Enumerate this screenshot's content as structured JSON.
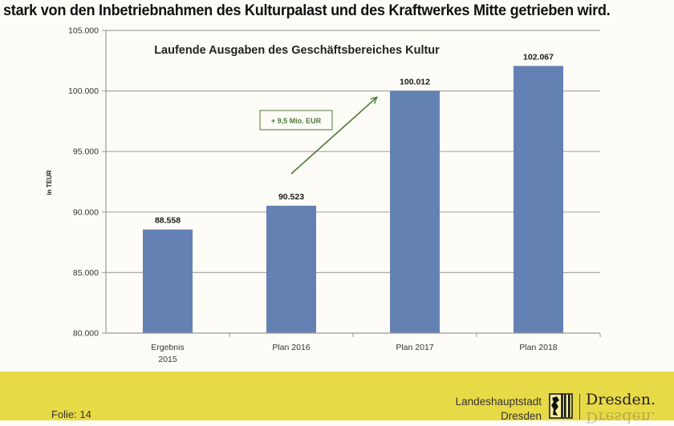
{
  "slide": {
    "headline": "stark von den Inbetriebnahmen des Kulturpalast und des Kraftwerkes Mitte getrieben wird.",
    "footer": {
      "slide_number": "Folie: 14",
      "org_line1": "Landeshauptstadt",
      "org_line2": "Dresden",
      "logo_text": "Dresden.",
      "background_color": "#e8da47"
    }
  },
  "chart_data": {
    "type": "bar",
    "title": "Laufende Ausgaben des Geschäftsbereiches Kultur",
    "xlabel": "",
    "ylabel": "in TEUR",
    "categories": [
      "Ergebnis 2015",
      "Plan 2016",
      "Plan 2017",
      "Plan 2018"
    ],
    "category_lines": [
      [
        "Ergebnis",
        "2015"
      ],
      [
        "Plan 2016"
      ],
      [
        "Plan 2017"
      ],
      [
        "Plan 2018"
      ]
    ],
    "values": [
      88558,
      90523,
      100012,
      102067
    ],
    "data_labels": [
      "88.558",
      "90.523",
      "100.012",
      "102.067"
    ],
    "ylim": [
      80000,
      105000
    ],
    "yticks": [
      80000,
      85000,
      90000,
      95000,
      100000,
      105000
    ],
    "ytick_labels": [
      "80.000",
      "85.000",
      "90.000",
      "95.000",
      "100.000",
      "105.000"
    ],
    "grid": true,
    "bar_color": "#6381b3",
    "annotation": {
      "text": "+ 9,5 Mio. EUR",
      "color": "#4e7a3a",
      "arrow_from_category": "Plan 2016",
      "arrow_to_category": "Plan 2017"
    }
  }
}
